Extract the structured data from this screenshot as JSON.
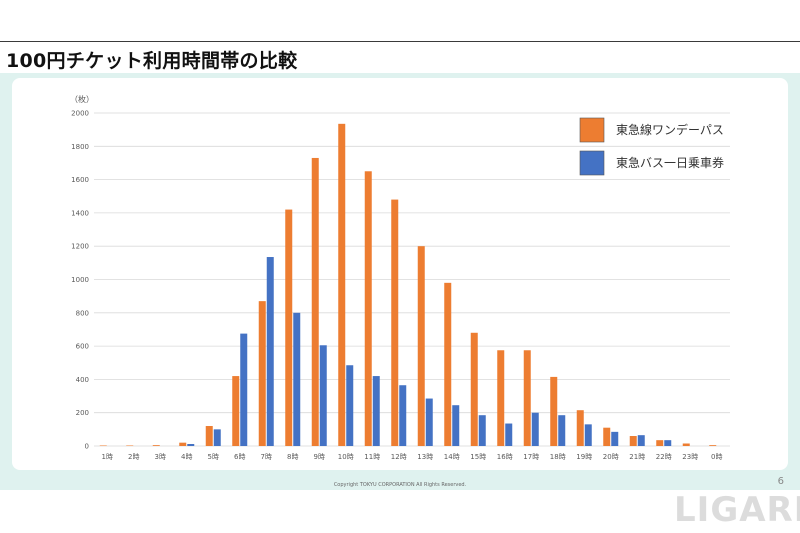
{
  "slide": {
    "title": "100円チケット利用時間帯の比較",
    "page_number": "6",
    "copyright": "Copyright TOKYU CORPORATION All Rights Reserved.",
    "watermark": "LIGARE"
  },
  "colors": {
    "series_1": "#ed7d31",
    "series_2": "#4472c4",
    "panel": "#dff2ef",
    "grid": "#d9d9d9"
  },
  "chart_data": {
    "type": "bar",
    "unit_label": "（枚）",
    "categories": [
      "1時",
      "2時",
      "3時",
      "4時",
      "5時",
      "6時",
      "7時",
      "8時",
      "9時",
      "10時",
      "11時",
      "12時",
      "13時",
      "14時",
      "15時",
      "16時",
      "17時",
      "18時",
      "19時",
      "20時",
      "21時",
      "22時",
      "23時",
      "0時"
    ],
    "series": [
      {
        "name": "東急線ワンデーパス",
        "values": [
          3,
          3,
          5,
          20,
          120,
          420,
          870,
          1420,
          1730,
          1935,
          1650,
          1480,
          1200,
          980,
          680,
          575,
          575,
          415,
          215,
          110,
          60,
          35,
          15,
          5
        ]
      },
      {
        "name": "東急バス一日乗車券",
        "values": [
          0,
          0,
          0,
          12,
          100,
          675,
          1135,
          800,
          605,
          485,
          420,
          365,
          285,
          245,
          185,
          135,
          200,
          185,
          130,
          85,
          65,
          35,
          0,
          0
        ]
      }
    ],
    "ylim": [
      0,
      2000
    ],
    "yticks": [
      "0",
      "200",
      "400",
      "600",
      "800",
      "1000",
      "1200",
      "1400",
      "1600",
      "1800",
      "2000"
    ],
    "grid": true,
    "legend": "top-right"
  }
}
